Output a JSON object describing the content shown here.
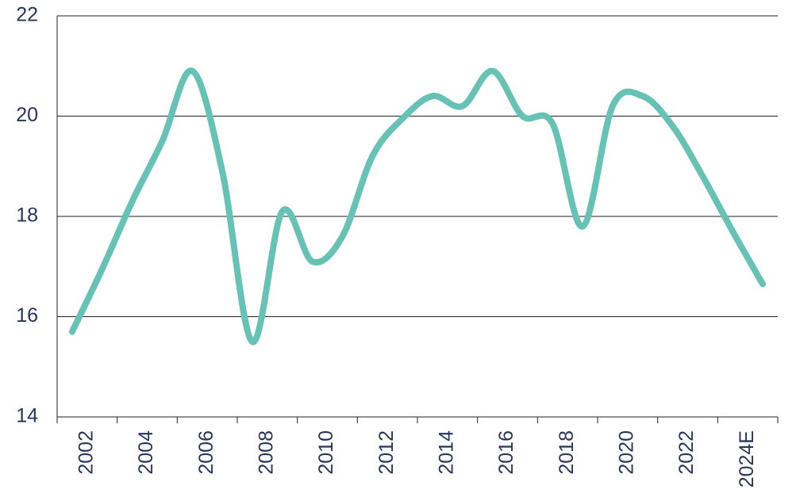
{
  "chart_data": {
    "type": "line",
    "categories": [
      "2002",
      null,
      "2004",
      null,
      "2006",
      null,
      "2008",
      null,
      "2010",
      null,
      "2012",
      null,
      "2014",
      null,
      "2016",
      null,
      "2018",
      null,
      "2020",
      null,
      "2022",
      null,
      "2024E",
      null
    ],
    "series": [
      {
        "name": null,
        "color": "#66c2b4",
        "values": [
          15.7,
          16.95,
          18.3,
          19.5,
          20.9,
          18.9,
          15.5,
          18.1,
          17.1,
          17.6,
          19.2,
          19.95,
          20.4,
          20.2,
          20.9,
          20.0,
          19.85,
          17.8,
          20.2,
          20.4,
          19.8,
          18.8,
          17.7,
          16.65
        ]
      }
    ],
    "ylim": [
      14,
      22
    ],
    "yticks": [
      14,
      16,
      18,
      20,
      22
    ],
    "grid": true
  }
}
